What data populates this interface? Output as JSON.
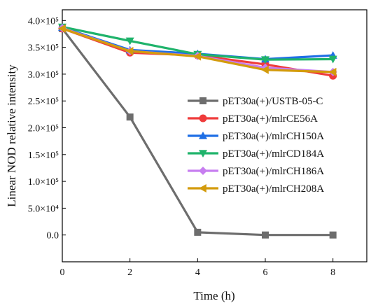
{
  "chart_data": {
    "type": "line",
    "xlabel": "Time (h)",
    "ylabel": "Linear NOD relative intensity",
    "xlim": [
      0,
      9
    ],
    "ylim": [
      -50000,
      420000
    ],
    "x": [
      0,
      2,
      4,
      6,
      8
    ],
    "x_ticks": [
      {
        "value": 0,
        "label": "0"
      },
      {
        "value": 2,
        "label": "2"
      },
      {
        "value": 4,
        "label": "4"
      },
      {
        "value": 6,
        "label": "6"
      },
      {
        "value": 8,
        "label": "8"
      }
    ],
    "y_ticks": [
      {
        "value": 0,
        "label": "0.0"
      },
      {
        "value": 50000,
        "label": "5.0×10⁴"
      },
      {
        "value": 100000,
        "label": "1.0×10⁵"
      },
      {
        "value": 150000,
        "label": "1.5×10⁵"
      },
      {
        "value": 200000,
        "label": "2.0×10⁵"
      },
      {
        "value": 250000,
        "label": "2.5×10⁵"
      },
      {
        "value": 300000,
        "label": "3.0×10⁵"
      },
      {
        "value": 350000,
        "label": "3.5×10⁵"
      },
      {
        "value": 400000,
        "label": "4.0×10⁵"
      }
    ],
    "grid": false,
    "legend_position": "right",
    "series": [
      {
        "name": "pET30a(+)/USTB-05-C",
        "color": "#6d6d6d",
        "marker": "square",
        "values": [
          385000,
          220000,
          5000,
          0,
          0
        ]
      },
      {
        "name": "pET30a(+)/mlrCE56A",
        "color": "#ef3b3b",
        "marker": "circle",
        "values": [
          385000,
          340000,
          335000,
          318000,
          297000
        ]
      },
      {
        "name": "pET30a(+)/mlrCH150A",
        "color": "#1f6fe5",
        "marker": "triangle-up",
        "values": [
          387000,
          345000,
          338000,
          328000,
          335000
        ]
      },
      {
        "name": "pET30a(+)/mlrCD184A",
        "color": "#1fb36b",
        "marker": "triangle-down",
        "values": [
          388000,
          362000,
          337000,
          327000,
          328000
        ]
      },
      {
        "name": "pET30a(+)/mlrCH186A",
        "color": "#c77ef0",
        "marker": "diamond",
        "values": [
          386000,
          343000,
          334000,
          312000,
          304000
        ]
      },
      {
        "name": "pET30a(+)/mlrCH208A",
        "color": "#d39b0c",
        "marker": "triangle-left",
        "values": [
          385000,
          343000,
          333000,
          308000,
          304000
        ]
      }
    ]
  }
}
